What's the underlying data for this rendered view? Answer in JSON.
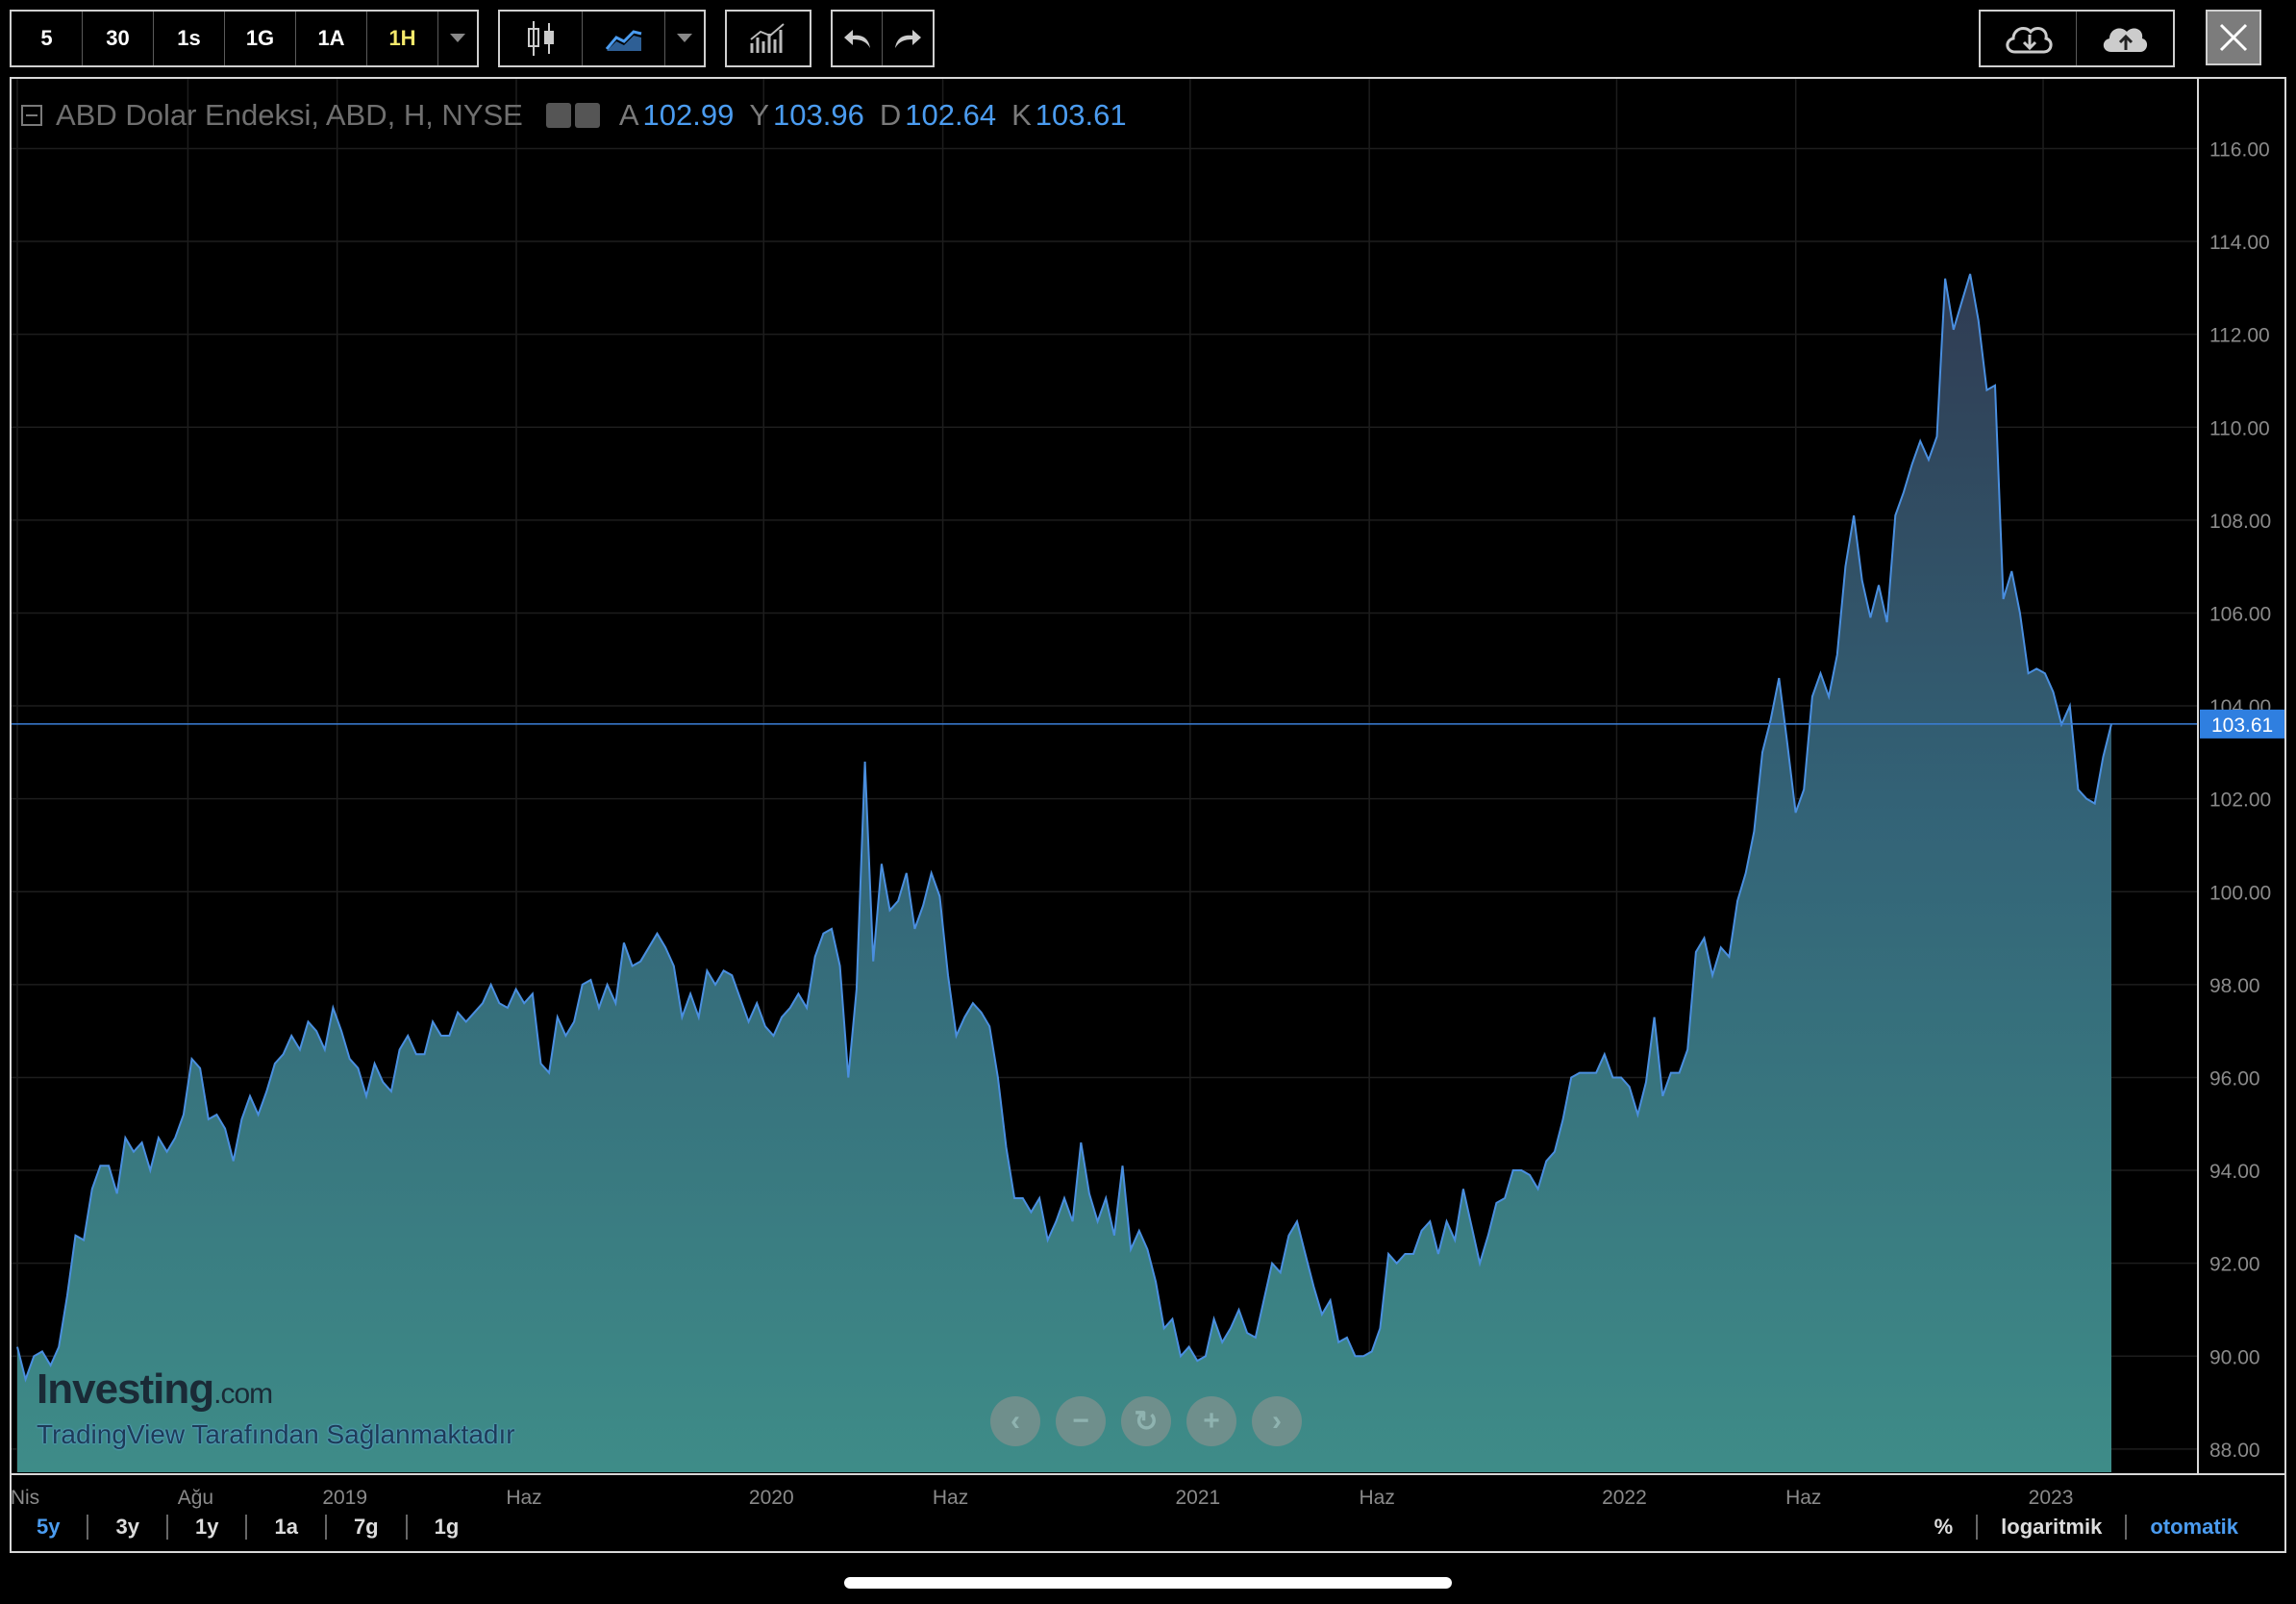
{
  "toolbar": {
    "intervals": [
      "5",
      "30",
      "1s",
      "1G",
      "1A",
      "1H"
    ],
    "active_interval": "1H"
  },
  "legend": {
    "symbol": "ABD Dolar Endeksi, ABD, H, NYSE",
    "open_label": "A",
    "open": "102.99",
    "high_label": "Y",
    "high": "103.96",
    "low_label": "D",
    "low": "102.64",
    "close_label": "K",
    "close": "103.61"
  },
  "ranges": [
    "5y",
    "3y",
    "1y",
    "1a",
    "7g",
    "1g"
  ],
  "scale_options": [
    "%",
    "logaritmik",
    "otomatik"
  ],
  "watermark": {
    "brand": "Investing",
    "domain": ".com",
    "provider": "TradingView Tarafından Sağlanmaktadır"
  },
  "colors": {
    "line": "#4a8fe0",
    "area_top": "#2f3b52",
    "area_bottom": "#3e8c88",
    "grid": "#1d1d1d",
    "price_label": "#2f7fe0"
  },
  "chart_data": {
    "type": "area",
    "title": "",
    "xlabel": "",
    "ylabel": "",
    "ylim": [
      87.5,
      117.5
    ],
    "yticks": [
      88,
      90,
      92,
      94,
      96,
      98,
      100,
      102,
      104,
      106,
      108,
      110,
      112,
      114,
      116
    ],
    "ytick_labels": [
      "88.00",
      "90.00",
      "92.00",
      "94.00",
      "96.00",
      "98.00",
      "100.00",
      "102.00",
      "104.00",
      "106.00",
      "108.00",
      "110.00",
      "112.00",
      "114.00",
      "116.00"
    ],
    "xticks": [
      {
        "label": "Nis",
        "t": 0.0
      },
      {
        "label": "Ağu",
        "t": 0.4
      },
      {
        "label": "2019",
        "t": 0.75
      },
      {
        "label": "Haz",
        "t": 1.17
      },
      {
        "label": "2020",
        "t": 1.75
      },
      {
        "label": "Haz",
        "t": 2.17
      },
      {
        "label": "2021",
        "t": 2.75
      },
      {
        "label": "Haz",
        "t": 3.17
      },
      {
        "label": "2022",
        "t": 3.75
      },
      {
        "label": "Haz",
        "t": 4.17
      },
      {
        "label": "2023",
        "t": 4.75
      }
    ],
    "last_value": 103.61,
    "last_label": "103.61",
    "series": [
      {
        "values": [
          90.2,
          89.5,
          90.0,
          90.1,
          89.8,
          90.2,
          91.3,
          92.6,
          92.5,
          93.6,
          94.1,
          94.1,
          93.5,
          94.7,
          94.4,
          94.6,
          94.0,
          94.7,
          94.4,
          94.7,
          95.2,
          96.4,
          96.2,
          95.1,
          95.2,
          94.9,
          94.2,
          95.1,
          95.6,
          95.2,
          95.7,
          96.3,
          96.5,
          96.9,
          96.6,
          97.2,
          97.0,
          96.6,
          97.5,
          97.0,
          96.4,
          96.2,
          95.6,
          96.3,
          95.9,
          95.7,
          96.6,
          96.9,
          96.5,
          96.5,
          97.2,
          96.9,
          96.9,
          97.4,
          97.2,
          97.4,
          97.6,
          98.0,
          97.6,
          97.5,
          97.9,
          97.6,
          97.8,
          96.3,
          96.1,
          97.3,
          96.9,
          97.2,
          98.0,
          98.1,
          97.5,
          98.0,
          97.6,
          98.9,
          98.4,
          98.5,
          98.8,
          99.1,
          98.8,
          98.4,
          97.3,
          97.8,
          97.3,
          98.3,
          98.0,
          98.3,
          98.2,
          97.7,
          97.2,
          97.6,
          97.1,
          96.9,
          97.3,
          97.5,
          97.8,
          97.5,
          98.6,
          99.1,
          99.2,
          98.4,
          96.0,
          97.9,
          102.8,
          98.5,
          100.6,
          99.6,
          99.8,
          100.4,
          99.2,
          99.7,
          100.4,
          99.9,
          98.2,
          96.9,
          97.3,
          97.6,
          97.4,
          97.1,
          96.0,
          94.5,
          93.4,
          93.4,
          93.1,
          93.4,
          92.5,
          92.9,
          93.4,
          92.9,
          94.6,
          93.5,
          92.9,
          93.4,
          92.6,
          94.1,
          92.3,
          92.7,
          92.3,
          91.6,
          90.6,
          90.8,
          90.0,
          90.2,
          89.9,
          90.0,
          90.8,
          90.3,
          90.6,
          91.0,
          90.5,
          90.4,
          91.2,
          92.0,
          91.8,
          92.6,
          92.9,
          92.2,
          91.5,
          90.9,
          91.2,
          90.3,
          90.4,
          90.0,
          90.0,
          90.1,
          90.6,
          92.2,
          92.0,
          92.2,
          92.2,
          92.7,
          92.9,
          92.2,
          92.9,
          92.5,
          93.6,
          92.8,
          92.0,
          92.6,
          93.3,
          93.4,
          94.0,
          94.0,
          93.9,
          93.6,
          94.2,
          94.4,
          95.1,
          96.0,
          96.1,
          96.1,
          96.1,
          96.5,
          96.0,
          96.0,
          95.8,
          95.2,
          95.9,
          97.3,
          95.6,
          96.1,
          96.1,
          96.6,
          98.7,
          99.0,
          98.2,
          98.8,
          98.6,
          99.8,
          100.4,
          101.3,
          103.0,
          103.7,
          104.6,
          103.2,
          101.7,
          102.2,
          104.2,
          104.7,
          104.2,
          105.1,
          107.0,
          108.1,
          106.7,
          105.9,
          106.6,
          105.8,
          108.1,
          108.6,
          109.2,
          109.7,
          109.3,
          109.8,
          113.2,
          112.1,
          112.7,
          113.3,
          112.3,
          110.8,
          110.9,
          106.3,
          106.9,
          106.0,
          104.7,
          104.8,
          104.7,
          104.3,
          103.6,
          104.0,
          102.2,
          102.0,
          101.9,
          102.9,
          103.61
        ]
      }
    ]
  }
}
